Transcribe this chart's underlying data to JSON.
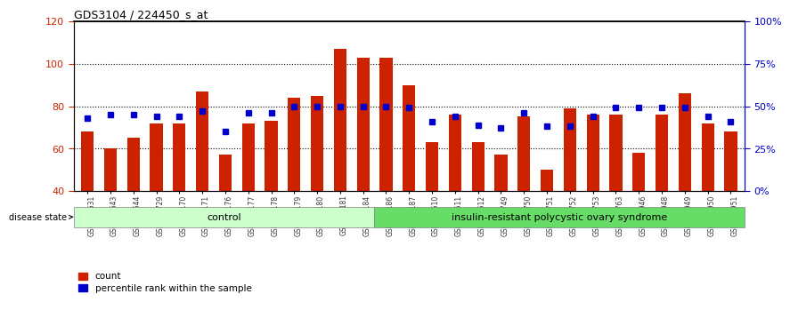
{
  "title": "GDS3104 / 224450_s_at",
  "samples": [
    "GSM155631",
    "GSM155643",
    "GSM155644",
    "GSM155729",
    "GSM156170",
    "GSM156171",
    "GSM156176",
    "GSM156177",
    "GSM156178",
    "GSM156179",
    "GSM156180",
    "GSM156181",
    "GSM156184",
    "GSM156186",
    "GSM156187",
    "GSM156510",
    "GSM156511",
    "GSM156512",
    "GSM156749",
    "GSM156750",
    "GSM156751",
    "GSM156752",
    "GSM156753",
    "GSM156763",
    "GSM156946",
    "GSM156948",
    "GSM156949",
    "GSM156950",
    "GSM156951"
  ],
  "bar_values": [
    68,
    60,
    65,
    72,
    72,
    87,
    57,
    72,
    73,
    84,
    85,
    107,
    103,
    103,
    90,
    63,
    76,
    63,
    57,
    75,
    50,
    79,
    76,
    76,
    58,
    76,
    86,
    72,
    68
  ],
  "percentile_values": [
    43,
    45,
    45,
    44,
    44,
    47,
    35,
    46,
    46,
    50,
    50,
    50,
    50,
    50,
    49,
    41,
    44,
    39,
    37,
    46,
    38,
    38,
    44,
    49,
    49,
    49,
    49,
    44,
    41
  ],
  "n_control": 13,
  "n_disease": 16,
  "ylim_left": [
    40,
    120
  ],
  "ylim_right": [
    0,
    100
  ],
  "bar_color": "#cc2200",
  "dot_color": "#0000cc",
  "control_color": "#ccffcc",
  "disease_color": "#66dd66",
  "xlabel_color": "#333333",
  "right_ticks": [
    0,
    25,
    50,
    75,
    100
  ],
  "right_tick_labels": [
    "0%",
    "25%",
    "50%",
    "75%",
    "100%"
  ],
  "left_ticks": [
    40,
    60,
    80,
    100,
    120
  ],
  "control_label": "control",
  "disease_label": "insulin-resistant polycystic ovary syndrome",
  "legend_count_label": "count",
  "legend_percentile_label": "percentile rank within the sample",
  "disease_state_label": "disease state"
}
